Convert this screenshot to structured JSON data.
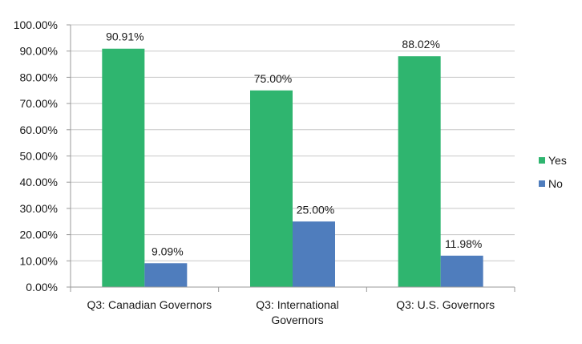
{
  "chart_data": {
    "type": "bar",
    "categories": [
      "Q3: Canadian Governors",
      "Q3: International Governors",
      "Q3: U.S. Governors"
    ],
    "category_label_lines": [
      [
        "Q3: Canadian Governors"
      ],
      [
        "Q3: International",
        "Governors"
      ],
      [
        "Q3: U.S. Governors"
      ]
    ],
    "series": [
      {
        "name": "Yes",
        "values": [
          90.91,
          75.0,
          88.02
        ],
        "color": "#2fb56f"
      },
      {
        "name": "No",
        "values": [
          9.09,
          25.0,
          11.98
        ],
        "color": "#4f7dbd"
      }
    ],
    "value_format": "percent-2dp",
    "ylim": [
      0,
      100
    ],
    "yticks": [
      "0.00%",
      "10.00%",
      "20.00%",
      "30.00%",
      "40.00%",
      "50.00%",
      "60.00%",
      "70.00%",
      "80.00%",
      "90.00%",
      "100.00%"
    ],
    "grid": true,
    "legend_position": "right",
    "title": "",
    "xlabel": "",
    "ylabel": ""
  }
}
